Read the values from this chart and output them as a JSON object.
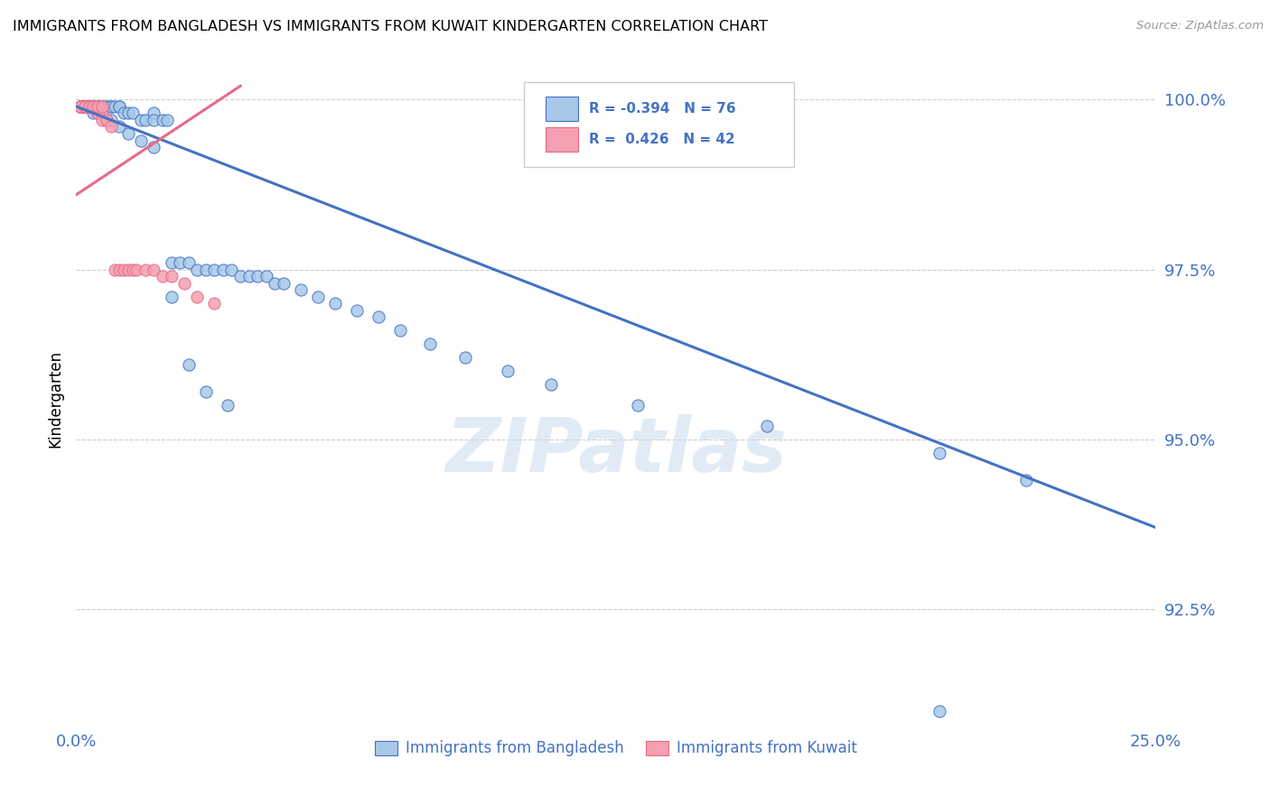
{
  "title": "IMMIGRANTS FROM BANGLADESH VS IMMIGRANTS FROM KUWAIT KINDERGARTEN CORRELATION CHART",
  "source": "Source: ZipAtlas.com",
  "ylabel": "Kindergarten",
  "r_blue": -0.394,
  "n_blue": 76,
  "r_pink": 0.426,
  "n_pink": 42,
  "color_blue": "#A8C8E8",
  "color_pink": "#F4A0B0",
  "trendline_blue": "#4472C4",
  "trendline_pink": "#E8698A",
  "legend_blue_label": "Immigrants from Bangladesh",
  "legend_pink_label": "Immigrants from Kuwait",
  "xlim": [
    0.0,
    0.25
  ],
  "ylim": [
    0.908,
    1.004
  ],
  "ytick_values": [
    0.925,
    0.95,
    0.975,
    1.0
  ],
  "ytick_labels": [
    "92.5%",
    "95.0%",
    "97.5%",
    "100.0%"
  ],
  "blue_trend_x": [
    0.0,
    0.25
  ],
  "blue_trend_y": [
    0.999,
    0.937
  ],
  "pink_trend_x": [
    0.0,
    0.038
  ],
  "pink_trend_y": [
    0.986,
    1.002
  ],
  "blue_x": [
    0.001,
    0.001,
    0.001,
    0.002,
    0.002,
    0.002,
    0.003,
    0.003,
    0.004,
    0.004,
    0.005,
    0.005,
    0.006,
    0.006,
    0.007,
    0.007,
    0.008,
    0.008,
    0.009,
    0.01,
    0.01,
    0.011,
    0.012,
    0.013,
    0.015,
    0.016,
    0.018,
    0.018,
    0.02,
    0.021,
    0.022,
    0.024,
    0.026,
    0.028,
    0.03,
    0.032,
    0.034,
    0.036,
    0.038,
    0.04,
    0.042,
    0.044,
    0.046,
    0.048,
    0.052,
    0.056,
    0.06,
    0.065,
    0.07,
    0.075,
    0.082,
    0.09,
    0.1,
    0.11,
    0.13,
    0.16,
    0.2,
    0.22,
    0.001,
    0.002,
    0.003,
    0.004,
    0.005,
    0.007,
    0.008,
    0.01,
    0.012,
    0.015,
    0.018,
    0.022,
    0.026,
    0.03,
    0.035,
    0.2
  ],
  "blue_y": [
    0.999,
    0.999,
    0.999,
    0.999,
    0.999,
    0.999,
    0.999,
    0.999,
    0.999,
    0.999,
    0.999,
    0.999,
    0.999,
    0.999,
    0.999,
    0.999,
    0.999,
    0.999,
    0.999,
    0.999,
    0.999,
    0.998,
    0.998,
    0.998,
    0.997,
    0.997,
    0.998,
    0.997,
    0.997,
    0.997,
    0.976,
    0.976,
    0.976,
    0.975,
    0.975,
    0.975,
    0.975,
    0.975,
    0.974,
    0.974,
    0.974,
    0.974,
    0.973,
    0.973,
    0.972,
    0.971,
    0.97,
    0.969,
    0.968,
    0.966,
    0.964,
    0.962,
    0.96,
    0.958,
    0.955,
    0.952,
    0.948,
    0.944,
    0.999,
    0.999,
    0.999,
    0.998,
    0.998,
    0.997,
    0.997,
    0.996,
    0.995,
    0.994,
    0.993,
    0.971,
    0.961,
    0.957,
    0.955,
    0.91
  ],
  "pink_x": [
    0.001,
    0.001,
    0.001,
    0.001,
    0.001,
    0.001,
    0.002,
    0.002,
    0.002,
    0.002,
    0.003,
    0.003,
    0.003,
    0.003,
    0.004,
    0.004,
    0.004,
    0.005,
    0.005,
    0.006,
    0.006,
    0.007,
    0.008,
    0.009,
    0.01,
    0.011,
    0.012,
    0.013,
    0.014,
    0.016,
    0.018,
    0.02,
    0.022,
    0.025,
    0.028,
    0.032,
    0.001,
    0.002,
    0.003,
    0.004,
    0.005,
    0.006
  ],
  "pink_y": [
    0.999,
    0.999,
    0.999,
    0.999,
    0.999,
    0.999,
    0.999,
    0.999,
    0.999,
    0.999,
    0.999,
    0.999,
    0.999,
    0.999,
    0.999,
    0.999,
    0.999,
    0.998,
    0.998,
    0.998,
    0.997,
    0.997,
    0.996,
    0.975,
    0.975,
    0.975,
    0.975,
    0.975,
    0.975,
    0.975,
    0.975,
    0.974,
    0.974,
    0.973,
    0.971,
    0.97,
    0.999,
    0.999,
    0.999,
    0.999,
    0.999,
    0.999
  ]
}
